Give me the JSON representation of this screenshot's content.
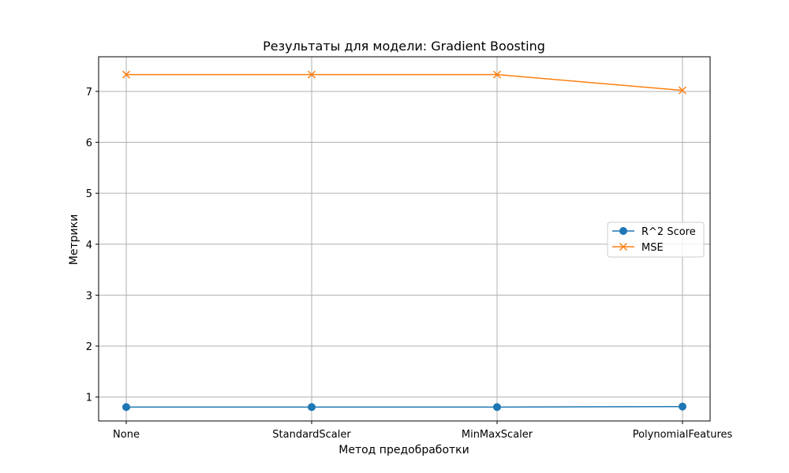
{
  "chart_data": {
    "type": "line",
    "title": "Результаты для модели: Gradient Boosting",
    "xlabel": "Метод предобработки",
    "ylabel": "Метрики",
    "categories": [
      "None",
      "StandardScaler",
      "MinMaxScaler",
      "PolynomialFeatures"
    ],
    "series": [
      {
        "name": "R^2 Score",
        "values": [
          0.803,
          0.803,
          0.803,
          0.813
        ],
        "color": "#1f77b4",
        "marker": "circle"
      },
      {
        "name": "MSE",
        "values": [
          7.33,
          7.33,
          7.33,
          7.02
        ],
        "color": "#ff7f0e",
        "marker": "x"
      }
    ],
    "ylim": [
      0.53,
      7.68
    ],
    "yticks": [
      1,
      2,
      3,
      4,
      5,
      6,
      7
    ],
    "grid": true,
    "legend_position": "center-right"
  }
}
